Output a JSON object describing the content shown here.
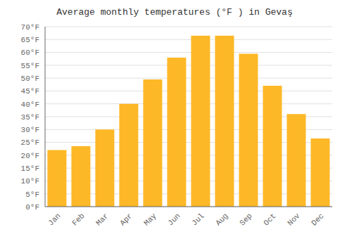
{
  "chart_data": {
    "type": "bar",
    "title": "Average monthly temperatures (°F ) in Gevaş",
    "categories": [
      "Jan",
      "Feb",
      "Mar",
      "Apr",
      "May",
      "Jun",
      "Jul",
      "Aug",
      "Sep",
      "Oct",
      "Nov",
      "Dec"
    ],
    "values": [
      22,
      23.5,
      30,
      40,
      49.5,
      58,
      66.5,
      66.5,
      59.5,
      47,
      36,
      26.5
    ],
    "color": "#FDB827",
    "ylim": [
      0,
      70
    ],
    "yticks": [
      {
        "value": 0,
        "label": "0°F"
      },
      {
        "value": 5,
        "label": "5°F"
      },
      {
        "value": 10,
        "label": "10°F"
      },
      {
        "value": 15,
        "label": "15°F"
      },
      {
        "value": 20,
        "label": "20°F"
      },
      {
        "value": 25,
        "label": "25°F"
      },
      {
        "value": 30,
        "label": "30°F"
      },
      {
        "value": 35,
        "label": "35°F"
      },
      {
        "value": 40,
        "label": "40°F"
      },
      {
        "value": 45,
        "label": "45°F"
      },
      {
        "value": 50,
        "label": "50°F"
      },
      {
        "value": 55,
        "label": "55°F"
      },
      {
        "value": 60,
        "label": "60°F"
      },
      {
        "value": 65,
        "label": "65°F"
      },
      {
        "value": 70,
        "label": "70°F"
      }
    ],
    "grid": true
  }
}
